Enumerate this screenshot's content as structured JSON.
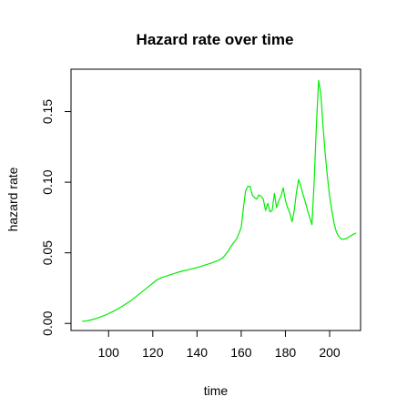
{
  "chart_data": {
    "type": "line",
    "title": "Hazard rate over time",
    "xlabel": "time",
    "ylabel": "hazard rate",
    "xlim": [
      83,
      214
    ],
    "ylim": [
      -0.005,
      0.18
    ],
    "xticks": [
      100,
      120,
      140,
      160,
      180,
      200
    ],
    "yticks": [
      0.0,
      0.05,
      0.1,
      0.15
    ],
    "xtick_labels": [
      "100",
      "120",
      "140",
      "160",
      "180",
      "200"
    ],
    "ytick_labels": [
      "0.00",
      "0.05",
      "0.10",
      "0.15"
    ],
    "grid": false,
    "legend": "none",
    "series": [
      {
        "color": "#00ee00",
        "x": [
          88,
          90,
          92,
          94,
          96,
          98,
          100,
          102,
          104,
          106,
          108,
          110,
          112,
          114,
          116,
          118,
          120,
          122,
          124,
          126,
          128,
          130,
          132,
          134,
          136,
          138,
          140,
          142,
          144,
          146,
          148,
          150,
          152,
          154,
          156,
          158,
          160,
          161,
          162,
          163,
          164,
          165,
          166,
          167,
          168,
          169,
          170,
          171,
          172,
          173,
          174,
          175,
          176,
          177,
          178,
          179,
          180,
          181,
          182,
          183,
          184,
          185,
          186,
          187,
          188,
          189,
          190,
          191,
          192,
          193,
          194,
          195,
          196,
          197,
          198,
          199,
          200,
          201,
          202,
          203,
          204,
          205,
          206,
          207,
          208,
          209,
          210,
          211,
          212
        ],
        "values": [
          0.0015,
          0.0018,
          0.0025,
          0.0033,
          0.0044,
          0.0056,
          0.007,
          0.0085,
          0.0102,
          0.012,
          0.014,
          0.016,
          0.0185,
          0.021,
          0.0235,
          0.026,
          0.0285,
          0.031,
          0.0325,
          0.0335,
          0.0345,
          0.0355,
          0.0365,
          0.0373,
          0.038,
          0.0388,
          0.0396,
          0.0405,
          0.0415,
          0.0425,
          0.0437,
          0.0448,
          0.047,
          0.051,
          0.056,
          0.06,
          0.068,
          0.082,
          0.094,
          0.097,
          0.097,
          0.091,
          0.089,
          0.088,
          0.091,
          0.09,
          0.088,
          0.08,
          0.085,
          0.079,
          0.08,
          0.092,
          0.082,
          0.087,
          0.09,
          0.096,
          0.087,
          0.082,
          0.078,
          0.072,
          0.08,
          0.093,
          0.102,
          0.097,
          0.091,
          0.086,
          0.08,
          0.075,
          0.07,
          0.1,
          0.14,
          0.172,
          0.163,
          0.14,
          0.12,
          0.104,
          0.09,
          0.08,
          0.071,
          0.065,
          0.062,
          0.06,
          0.0595,
          0.0598,
          0.0605,
          0.0615,
          0.0625,
          0.0633,
          0.064
        ]
      }
    ]
  }
}
